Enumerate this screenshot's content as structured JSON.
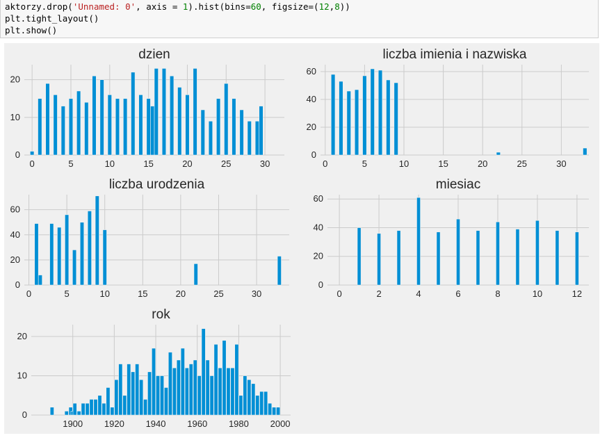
{
  "code": {
    "lines": [
      [
        {
          "t": "aktorzy.drop("
        },
        {
          "t": "'Unnamed: 0'",
          "c": "str"
        },
        {
          "t": ", axis = "
        },
        {
          "t": "1",
          "c": "num"
        },
        {
          "t": ").hist(bins="
        },
        {
          "t": "60",
          "c": "num"
        },
        {
          "t": ", figsize=("
        },
        {
          "t": "12",
          "c": "num"
        },
        {
          "t": ","
        },
        {
          "t": "8",
          "c": "num"
        },
        {
          "t": "))"
        }
      ],
      [
        {
          "t": "plt.tight_layout()"
        }
      ],
      [
        {
          "t": "plt.show()"
        }
      ]
    ]
  },
  "colors": {
    "bar": "#008fd5",
    "panel_bg": "#f0f0f0",
    "grid": "#cbcbcb",
    "text": "#262626"
  },
  "chart_data": [
    {
      "type": "bar",
      "title": "dzien",
      "xlim": [
        -1.0,
        32.5
      ],
      "ylim": [
        0,
        24
      ],
      "xticks": [
        0,
        5,
        10,
        15,
        20,
        25,
        30
      ],
      "yticks": [
        0,
        10,
        20
      ],
      "bin_width": 0.5,
      "bins": [
        {
          "x": 0,
          "y": 1
        },
        {
          "x": 1,
          "y": 15
        },
        {
          "x": 2,
          "y": 19
        },
        {
          "x": 3,
          "y": 16
        },
        {
          "x": 4,
          "y": 13
        },
        {
          "x": 5,
          "y": 15
        },
        {
          "x": 6,
          "y": 17
        },
        {
          "x": 7,
          "y": 14
        },
        {
          "x": 8,
          "y": 21
        },
        {
          "x": 9,
          "y": 20
        },
        {
          "x": 10,
          "y": 16
        },
        {
          "x": 11,
          "y": 15
        },
        {
          "x": 12,
          "y": 15
        },
        {
          "x": 13,
          "y": 22
        },
        {
          "x": 14,
          "y": 16
        },
        {
          "x": 15,
          "y": 15
        },
        {
          "x": 15.5,
          "y": 13
        },
        {
          "x": 16,
          "y": 23
        },
        {
          "x": 17,
          "y": 23
        },
        {
          "x": 18,
          "y": 21
        },
        {
          "x": 19,
          "y": 18
        },
        {
          "x": 20,
          "y": 16
        },
        {
          "x": 21,
          "y": 23
        },
        {
          "x": 22,
          "y": 12
        },
        {
          "x": 23,
          "y": 9
        },
        {
          "x": 24,
          "y": 15
        },
        {
          "x": 25,
          "y": 19
        },
        {
          "x": 26,
          "y": 15
        },
        {
          "x": 27,
          "y": 12
        },
        {
          "x": 28,
          "y": 9
        },
        {
          "x": 29,
          "y": 9
        },
        {
          "x": 29.5,
          "y": 13
        }
      ]
    },
    {
      "type": "bar",
      "title": "liczba imienia i nazwiska",
      "xlim": [
        -0.6,
        33.5
      ],
      "ylim": [
        0,
        65
      ],
      "xticks": [
        0,
        5,
        10,
        15,
        20,
        25,
        30
      ],
      "yticks": [
        0,
        20,
        40,
        60
      ],
      "bin_width": 0.5,
      "bins": [
        {
          "x": 1,
          "y": 58
        },
        {
          "x": 2,
          "y": 53
        },
        {
          "x": 3,
          "y": 46
        },
        {
          "x": 4,
          "y": 47
        },
        {
          "x": 5,
          "y": 57
        },
        {
          "x": 6,
          "y": 62
        },
        {
          "x": 7,
          "y": 61
        },
        {
          "x": 8,
          "y": 54
        },
        {
          "x": 9,
          "y": 52
        },
        {
          "x": 22,
          "y": 2
        },
        {
          "x": 33,
          "y": 5
        }
      ]
    },
    {
      "type": "bar",
      "title": "liczba urodzenia",
      "xlim": [
        -0.6,
        34.3
      ],
      "ylim": [
        0,
        72
      ],
      "xticks": [
        0,
        5,
        10,
        15,
        20,
        25,
        30
      ],
      "yticks": [
        0,
        20,
        40,
        60
      ],
      "bin_width": 0.5,
      "bins": [
        {
          "x": 1,
          "y": 49
        },
        {
          "x": 1.5,
          "y": 8
        },
        {
          "x": 3,
          "y": 49
        },
        {
          "x": 4,
          "y": 46
        },
        {
          "x": 5,
          "y": 56
        },
        {
          "x": 6,
          "y": 28
        },
        {
          "x": 7,
          "y": 50
        },
        {
          "x": 8,
          "y": 59
        },
        {
          "x": 9,
          "y": 71
        },
        {
          "x": 10,
          "y": 44
        },
        {
          "x": 22,
          "y": 17
        },
        {
          "x": 33,
          "y": 23
        }
      ]
    },
    {
      "type": "bar",
      "title": "miesiac",
      "xlim": [
        -0.6,
        12.6
      ],
      "ylim": [
        0,
        63
      ],
      "xticks": [
        0,
        2,
        4,
        6,
        8,
        10,
        12
      ],
      "yticks": [
        0,
        20,
        40,
        60
      ],
      "bin_width": 0.18,
      "bins": [
        {
          "x": 1,
          "y": 40
        },
        {
          "x": 2,
          "y": 36
        },
        {
          "x": 3,
          "y": 38
        },
        {
          "x": 4,
          "y": 61
        },
        {
          "x": 5,
          "y": 37
        },
        {
          "x": 6,
          "y": 46
        },
        {
          "x": 7,
          "y": 38
        },
        {
          "x": 8,
          "y": 44
        },
        {
          "x": 9,
          "y": 39
        },
        {
          "x": 10,
          "y": 45
        },
        {
          "x": 11,
          "y": 38
        },
        {
          "x": 12,
          "y": 37
        }
      ]
    },
    {
      "type": "bar",
      "title": "rok",
      "xlim": [
        1880,
        2005
      ],
      "ylim": [
        0,
        23
      ],
      "xticks": [
        1900,
        1920,
        1940,
        1960,
        1980,
        2000
      ],
      "yticks": [
        0,
        10,
        20
      ],
      "bin_width": 1.8,
      "bins": [
        {
          "x": 1890,
          "y": 2
        },
        {
          "x": 1897,
          "y": 1
        },
        {
          "x": 1899,
          "y": 2
        },
        {
          "x": 1900,
          "y": 1
        },
        {
          "x": 1901,
          "y": 3
        },
        {
          "x": 1903,
          "y": 1
        },
        {
          "x": 1905,
          "y": 3
        },
        {
          "x": 1907,
          "y": 3
        },
        {
          "x": 1909,
          "y": 4
        },
        {
          "x": 1911,
          "y": 4
        },
        {
          "x": 1913,
          "y": 5
        },
        {
          "x": 1915,
          "y": 3
        },
        {
          "x": 1917,
          "y": 7
        },
        {
          "x": 1919,
          "y": 2
        },
        {
          "x": 1921,
          "y": 9
        },
        {
          "x": 1923,
          "y": 13
        },
        {
          "x": 1925,
          "y": 5
        },
        {
          "x": 1927,
          "y": 13
        },
        {
          "x": 1929,
          "y": 11
        },
        {
          "x": 1931,
          "y": 13
        },
        {
          "x": 1933,
          "y": 9
        },
        {
          "x": 1935,
          "y": 4
        },
        {
          "x": 1937,
          "y": 11
        },
        {
          "x": 1939,
          "y": 17
        },
        {
          "x": 1941,
          "y": 10
        },
        {
          "x": 1943,
          "y": 10
        },
        {
          "x": 1945,
          "y": 7
        },
        {
          "x": 1947,
          "y": 16
        },
        {
          "x": 1949,
          "y": 12
        },
        {
          "x": 1951,
          "y": 14
        },
        {
          "x": 1953,
          "y": 17
        },
        {
          "x": 1955,
          "y": 12
        },
        {
          "x": 1957,
          "y": 13
        },
        {
          "x": 1959,
          "y": 14
        },
        {
          "x": 1961,
          "y": 10
        },
        {
          "x": 1963,
          "y": 22
        },
        {
          "x": 1965,
          "y": 14
        },
        {
          "x": 1967,
          "y": 10
        },
        {
          "x": 1969,
          "y": 18
        },
        {
          "x": 1971,
          "y": 12
        },
        {
          "x": 1973,
          "y": 19
        },
        {
          "x": 1975,
          "y": 12
        },
        {
          "x": 1977,
          "y": 12
        },
        {
          "x": 1979,
          "y": 18
        },
        {
          "x": 1981,
          "y": 5
        },
        {
          "x": 1983,
          "y": 10
        },
        {
          "x": 1985,
          "y": 9
        },
        {
          "x": 1987,
          "y": 8
        },
        {
          "x": 1989,
          "y": 5
        },
        {
          "x": 1991,
          "y": 6
        },
        {
          "x": 1993,
          "y": 6
        },
        {
          "x": 1995,
          "y": 3
        },
        {
          "x": 1997,
          "y": 2
        },
        {
          "x": 1999,
          "y": 2
        }
      ]
    }
  ]
}
